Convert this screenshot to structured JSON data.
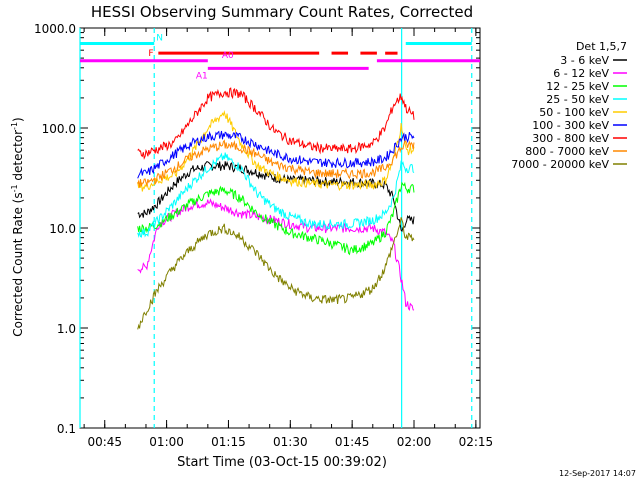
{
  "chart_data": {
    "type": "line",
    "title": "HESSI Observing Summary Count Rates, Corrected",
    "xlabel": "Start Time (03-Oct-15 00:39:02)",
    "ylabel": "Corrected Count Rate (s",
    "ylabel_sup1": "-1",
    "ylabel_mid": " detector",
    "ylabel_sup2": "-1",
    "ylabel_end": ")",
    "footer": "12-Sep-2017 14:07",
    "y_scale": "log",
    "ylim": [
      0.1,
      1000
    ],
    "xlim_minutes": [
      0.65,
      2.2667
    ],
    "xlim_time": [
      "00:39",
      "02:16"
    ],
    "y_ticks": [
      {
        "value": 0.1,
        "label": "0.1"
      },
      {
        "value": 1,
        "label": "1.0"
      },
      {
        "value": 10,
        "label": "10.0"
      },
      {
        "value": 100,
        "label": "100.0"
      },
      {
        "value": 1000,
        "label": "1000.0"
      }
    ],
    "x_ticks": [
      {
        "value": 0.75,
        "label": "00:45"
      },
      {
        "value": 1.0,
        "label": "01:00"
      },
      {
        "value": 1.25,
        "label": "01:15"
      },
      {
        "value": 1.5,
        "label": "01:30"
      },
      {
        "value": 1.75,
        "label": "01:45"
      },
      {
        "value": 2.0,
        "label": "02:00"
      },
      {
        "value": 2.25,
        "label": "02:15"
      }
    ],
    "legend_title": "Det 1,5,7",
    "legend_position": "right",
    "series": [
      {
        "name": "3 - 6 keV",
        "color": "#000000",
        "x": [
          "00:53",
          "00:55",
          "00:58",
          "01:02",
          "01:06",
          "01:10",
          "01:14",
          "01:18",
          "01:22",
          "01:26",
          "01:30",
          "01:35",
          "01:40",
          "01:45",
          "01:50",
          "01:53",
          "01:55",
          "01:57",
          "01:58",
          "02:00"
        ],
        "values": [
          14,
          14,
          18,
          28,
          38,
          42,
          42,
          40,
          36,
          32,
          30,
          30,
          29,
          29,
          28,
          27,
          20,
          9,
          12,
          12
        ]
      },
      {
        "name": "6 - 12 keV",
        "color": "#ff00ff",
        "x": [
          "00:53",
          "00:55",
          "00:58",
          "01:02",
          "01:06",
          "01:10",
          "01:14",
          "01:18",
          "01:22",
          "01:26",
          "01:30",
          "01:35",
          "01:40",
          "01:45",
          "01:50",
          "01:53",
          "01:55",
          "01:57",
          "01:58",
          "02:00"
        ],
        "values": [
          4,
          4,
          11,
          14,
          17,
          18,
          16,
          14,
          13,
          12,
          11,
          10,
          10,
          10,
          10,
          9,
          7,
          3,
          1.8,
          1.5
        ]
      },
      {
        "name": "12 - 25 keV",
        "color": "#00ff00",
        "x": [
          "00:53",
          "00:55",
          "00:58",
          "01:02",
          "01:06",
          "01:10",
          "01:14",
          "01:18",
          "01:22",
          "01:26",
          "01:30",
          "01:35",
          "01:40",
          "01:45",
          "01:50",
          "01:53",
          "01:55",
          "01:57",
          "01:58",
          "02:00"
        ],
        "values": [
          10,
          10,
          11,
          14,
          18,
          22,
          24,
          20,
          14,
          11,
          9,
          8,
          7,
          6,
          7,
          9,
          14,
          28,
          25,
          25
        ]
      },
      {
        "name": "25 - 50 keV",
        "color": "#00ffff",
        "x": [
          "00:53",
          "00:55",
          "00:58",
          "01:02",
          "01:06",
          "01:10",
          "01:14",
          "01:18",
          "01:22",
          "01:26",
          "01:30",
          "01:35",
          "01:40",
          "01:45",
          "01:50",
          "01:53",
          "01:55",
          "01:57",
          "01:58",
          "02:00"
        ],
        "values": [
          9,
          9,
          12,
          18,
          28,
          40,
          52,
          40,
          22,
          16,
          13,
          11,
          11,
          11,
          12,
          14,
          20,
          45,
          40,
          40
        ]
      },
      {
        "name": "50 - 100 keV",
        "color": "#ffcc00",
        "x": [
          "00:53",
          "00:55",
          "00:58",
          "01:02",
          "01:06",
          "01:10",
          "01:14",
          "01:18",
          "01:22",
          "01:26",
          "01:30",
          "01:35",
          "01:40",
          "01:45",
          "01:50",
          "01:53",
          "01:55",
          "01:57",
          "01:58",
          "02:00"
        ],
        "values": [
          26,
          26,
          30,
          34,
          55,
          100,
          145,
          70,
          42,
          34,
          30,
          28,
          27,
          27,
          27,
          30,
          48,
          110,
          60,
          60
        ]
      },
      {
        "name": "100 - 300 keV",
        "color": "#0000ff",
        "x": [
          "00:53",
          "00:55",
          "00:58",
          "01:02",
          "01:06",
          "01:10",
          "01:14",
          "01:18",
          "01:22",
          "01:26",
          "01:30",
          "01:35",
          "01:40",
          "01:45",
          "01:50",
          "01:53",
          "01:55",
          "01:57",
          "01:58",
          "02:00"
        ],
        "values": [
          35,
          35,
          42,
          55,
          70,
          82,
          86,
          80,
          68,
          56,
          50,
          46,
          45,
          45,
          46,
          50,
          62,
          80,
          82,
          82
        ]
      },
      {
        "name": "300 - 800 keV",
        "color": "#ff0000",
        "x": [
          "00:53",
          "00:55",
          "00:58",
          "01:02",
          "01:06",
          "01:10",
          "01:14",
          "01:18",
          "01:22",
          "01:26",
          "01:30",
          "01:35",
          "01:40",
          "01:45",
          "01:50",
          "01:53",
          "01:55",
          "01:57",
          "01:58",
          "02:00"
        ],
        "values": [
          56,
          56,
          62,
          72,
          120,
          200,
          230,
          220,
          150,
          95,
          75,
          65,
          62,
          62,
          70,
          100,
          170,
          210,
          160,
          130
        ]
      },
      {
        "name": "800 - 7000 keV",
        "color": "#ff8800",
        "x": [
          "00:53",
          "00:55",
          "00:58",
          "01:02",
          "01:06",
          "01:10",
          "01:14",
          "01:18",
          "01:22",
          "01:26",
          "01:30",
          "01:35",
          "01:40",
          "01:45",
          "01:50",
          "01:53",
          "01:55",
          "01:57",
          "01:58",
          "02:00"
        ],
        "values": [
          28,
          28,
          32,
          40,
          52,
          62,
          68,
          64,
          54,
          44,
          40,
          36,
          35,
          35,
          36,
          40,
          50,
          64,
          68,
          68
        ]
      },
      {
        "name": "7000 - 20000 keV",
        "color": "#808000",
        "x": [
          "00:53",
          "00:55",
          "00:58",
          "01:02",
          "01:06",
          "01:10",
          "01:14",
          "01:18",
          "01:22",
          "01:26",
          "01:30",
          "01:35",
          "01:40",
          "01:45",
          "01:50",
          "01:53",
          "01:55",
          "01:57",
          "01:58",
          "02:00"
        ],
        "values": [
          1,
          1.5,
          2.5,
          4.2,
          6.3,
          8.8,
          10,
          8,
          5.5,
          3.5,
          2.5,
          2,
          1.9,
          2,
          2.5,
          4,
          7,
          12,
          8,
          8
        ]
      }
    ],
    "vertical_lines": [
      {
        "x": "00:39",
        "color": "#00ffff",
        "style": "solid"
      },
      {
        "x": "00:57",
        "color": "#00ffff",
        "style": "dashed"
      },
      {
        "x": "01:57",
        "color": "#00ffff",
        "style": "solid"
      },
      {
        "x": "02:14",
        "color": "#00ffff",
        "style": "dashed"
      }
    ],
    "flag_bars": [
      {
        "label": "N",
        "color": "#00ffff",
        "level": 700,
        "segments": [
          [
            "00:39",
            "00:57"
          ],
          [
            "01:58",
            "02:14"
          ]
        ]
      },
      {
        "label": "F",
        "color": "#ff0000",
        "level": 560,
        "segments": [
          [
            "00:58",
            "01:37"
          ],
          [
            "01:40",
            "01:44"
          ],
          [
            "01:47",
            "01:51"
          ],
          [
            "01:53",
            "01:56"
          ]
        ]
      },
      {
        "label": "A0",
        "color": "#ff00ff",
        "level": 470,
        "segments": [
          [
            "00:39",
            "01:10"
          ],
          [
            "01:51",
            "02:16"
          ]
        ]
      },
      {
        "label": "A1",
        "color": "#ff00ff",
        "level": 395,
        "segments": [
          [
            "01:10",
            "01:49"
          ]
        ]
      }
    ]
  }
}
